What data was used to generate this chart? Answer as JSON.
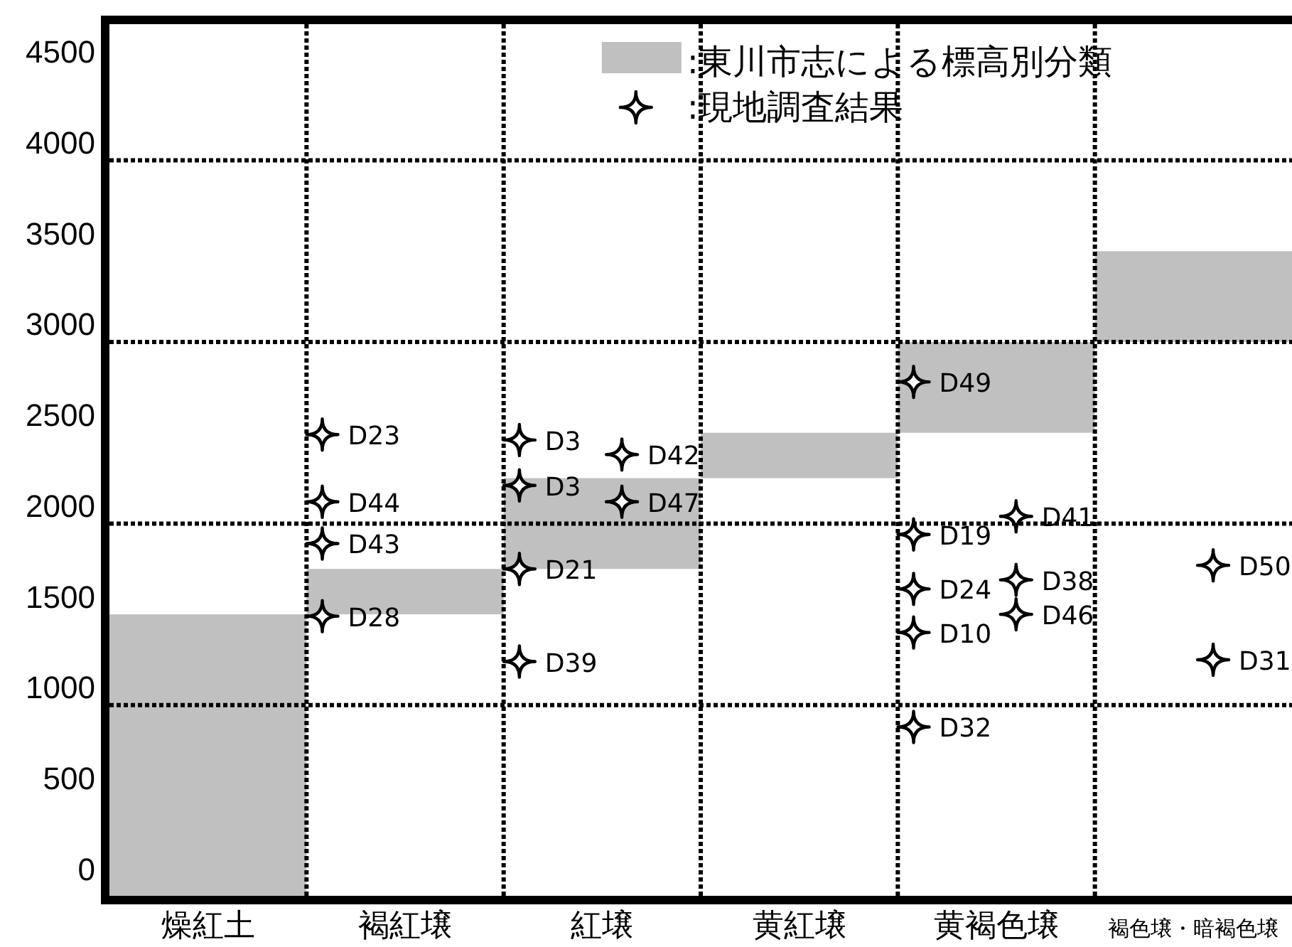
{
  "chart_data": {
    "type": "bar",
    "categories": [
      "燥紅土",
      "褐紅壌",
      "紅壌",
      "黄紅壌",
      "黄褐色壌",
      "褐色壌・暗褐色壌"
    ],
    "series": [
      {
        "name": ":東川市志による標高別分類",
        "type": "bar",
        "color": "#c0c0c0",
        "base": [
          -150,
          1400,
          1650,
          2150,
          2400,
          2900
        ],
        "values": [
          1550,
          250,
          500,
          250,
          500,
          500
        ]
      },
      {
        "name": ":現地調査結果",
        "type": "scatter",
        "color": "#000000",
        "marker": "star",
        "x": [
          "褐紅壌",
          "褐紅壌",
          "褐紅壌",
          "褐紅壌",
          "紅壌",
          "紅壌",
          "紅壌",
          "紅壌",
          "黄褐色壌",
          "黄褐色壌",
          "黄褐色壌",
          "黄褐色壌",
          "黄褐色壌"
        ],
        "values": [
          2390,
          2020,
          1790,
          1390,
          2360,
          2110,
          1650,
          1140,
          2680,
          1840,
          1540,
          1300,
          780
        ],
        "value_labels": [
          "D23",
          "D44",
          "D43",
          "D28",
          "D3",
          "D3",
          "D21",
          "D39",
          "D49",
          "D19",
          "D24",
          "D10",
          "D32"
        ]
      },
      {
        "type": "scatter",
        "color": "#000000",
        "marker": "star",
        "x": [
          "紅壌",
          "紅壌",
          "黄褐色壌",
          "黄褐色壌",
          "黄褐色壌",
          "褐色壌・暗褐色壌",
          "褐色壌・暗褐色壌"
        ],
        "values": [
          2280,
          2020,
          1940,
          1590,
          1400,
          1670,
          1150
        ],
        "value_labels": [
          "D42",
          "D47",
          "D41",
          "D38",
          "D46",
          "D50",
          "D31"
        ]
      }
    ],
    "ylim": [
      -150,
      4650
    ],
    "yticks": [
      0,
      500,
      1000,
      1500,
      2000,
      2500,
      3000,
      3500,
      4000,
      4500
    ],
    "grid": "x",
    "legend": "top",
    "ref_lines": [
      {
        "axis": "y",
        "value": 900,
        "line_style": "dotted",
        "color": "#000000"
      },
      {
        "axis": "y",
        "value": 1900,
        "line_style": "dotted",
        "color": "#000000"
      },
      {
        "axis": "y",
        "value": 2900,
        "line_style": "dotted",
        "color": "#000000"
      },
      {
        "axis": "y",
        "value": 3900,
        "line_style": "dotted",
        "color": "#000000"
      }
    ]
  }
}
